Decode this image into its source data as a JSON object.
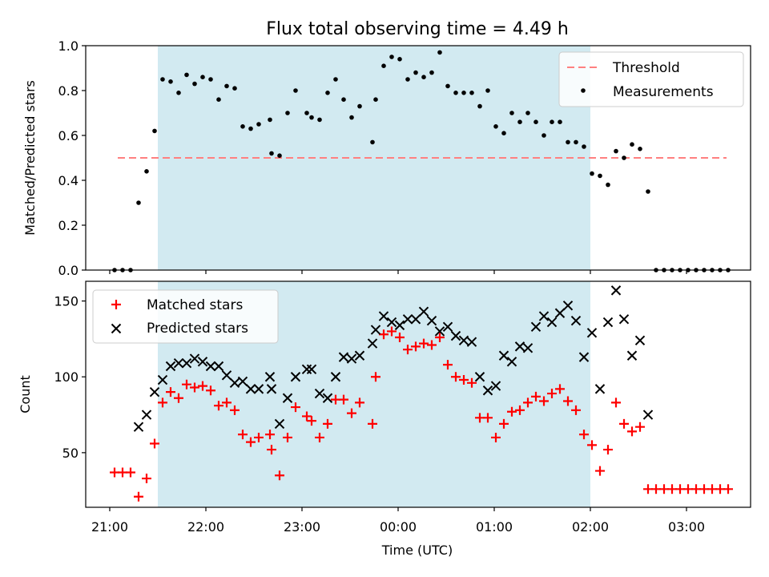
{
  "chart_data": [
    {
      "type": "scatter",
      "title": "Flux total observing time = 4.49 h",
      "xlabel": "",
      "ylabel": "Matched/Predicted stars",
      "ylim": [
        0,
        1.0
      ],
      "yticks": [
        "0.0",
        "0.2",
        "0.4",
        "0.6",
        "0.8",
        "1.0"
      ],
      "xlim": [
        "20:45",
        "03:40"
      ],
      "shaded_interval": [
        "21:30",
        "02:00"
      ],
      "shade_color": "#add8e6",
      "threshold": {
        "name": "Threshold",
        "value": 0.5,
        "x_range": [
          "21:05",
          "03:25"
        ],
        "color": "#ff8080"
      },
      "legend": [
        "Threshold",
        "Measurements"
      ],
      "series": [
        {
          "name": "Measurements",
          "marker": "dot",
          "color": "#000000",
          "points": [
            [
              "21:03",
              0.0
            ],
            [
              "21:08",
              0.0
            ],
            [
              "21:13",
              0.0
            ],
            [
              "21:18",
              0.3
            ],
            [
              "21:23",
              0.44
            ],
            [
              "21:28",
              0.62
            ],
            [
              "21:33",
              0.85
            ],
            [
              "21:38",
              0.84
            ],
            [
              "21:43",
              0.79
            ],
            [
              "21:48",
              0.87
            ],
            [
              "21:53",
              0.83
            ],
            [
              "21:58",
              0.86
            ],
            [
              "22:03",
              0.85
            ],
            [
              "22:08",
              0.76
            ],
            [
              "22:13",
              0.82
            ],
            [
              "22:18",
              0.81
            ],
            [
              "22:23",
              0.64
            ],
            [
              "22:28",
              0.63
            ],
            [
              "22:33",
              0.65
            ],
            [
              "22:40",
              0.67
            ],
            [
              "22:41",
              0.52
            ],
            [
              "22:46",
              0.51
            ],
            [
              "22:51",
              0.7
            ],
            [
              "22:56",
              0.8
            ],
            [
              "23:03",
              0.7
            ],
            [
              "23:06",
              0.68
            ],
            [
              "23:11",
              0.67
            ],
            [
              "23:16",
              0.79
            ],
            [
              "23:21",
              0.85
            ],
            [
              "23:26",
              0.76
            ],
            [
              "23:31",
              0.68
            ],
            [
              "23:36",
              0.73
            ],
            [
              "23:44",
              0.57
            ],
            [
              "23:46",
              0.76
            ],
            [
              "23:51",
              0.91
            ],
            [
              "23:56",
              0.95
            ],
            [
              "00:01",
              0.94
            ],
            [
              "00:06",
              0.85
            ],
            [
              "00:11",
              0.88
            ],
            [
              "00:16",
              0.86
            ],
            [
              "00:21",
              0.88
            ],
            [
              "00:26",
              0.97
            ],
            [
              "00:31",
              0.82
            ],
            [
              "00:36",
              0.79
            ],
            [
              "00:41",
              0.79
            ],
            [
              "00:46",
              0.79
            ],
            [
              "00:51",
              0.73
            ],
            [
              "00:56",
              0.8
            ],
            [
              "01:01",
              0.64
            ],
            [
              "01:06",
              0.61
            ],
            [
              "01:11",
              0.7
            ],
            [
              "01:16",
              0.66
            ],
            [
              "01:21",
              0.7
            ],
            [
              "01:26",
              0.66
            ],
            [
              "01:31",
              0.6
            ],
            [
              "01:36",
              0.66
            ],
            [
              "01:41",
              0.66
            ],
            [
              "01:46",
              0.57
            ],
            [
              "01:51",
              0.57
            ],
            [
              "01:56",
              0.55
            ],
            [
              "02:01",
              0.43
            ],
            [
              "02:06",
              0.42
            ],
            [
              "02:11",
              0.38
            ],
            [
              "02:16",
              0.53
            ],
            [
              "02:21",
              0.5
            ],
            [
              "02:26",
              0.56
            ],
            [
              "02:31",
              0.54
            ],
            [
              "02:36",
              0.35
            ],
            [
              "02:41",
              0.0
            ],
            [
              "02:46",
              0.0
            ],
            [
              "02:51",
              0.0
            ],
            [
              "02:56",
              0.0
            ],
            [
              "03:01",
              0.0
            ],
            [
              "03:06",
              0.0
            ],
            [
              "03:11",
              0.0
            ],
            [
              "03:16",
              0.0
            ],
            [
              "03:21",
              0.0
            ],
            [
              "03:26",
              0.0
            ]
          ]
        }
      ]
    },
    {
      "type": "scatter",
      "xlabel": "Time (UTC)",
      "ylabel": "Count",
      "ylim": [
        14,
        163
      ],
      "yticks": [
        "50",
        "100",
        "150"
      ],
      "xlim": [
        "20:45",
        "03:40"
      ],
      "xticks": [
        "21:00",
        "22:00",
        "23:00",
        "00:00",
        "01:00",
        "02:00",
        "03:00"
      ],
      "shaded_interval": [
        "21:30",
        "02:00"
      ],
      "shade_color": "#add8e6",
      "legend": [
        "Matched stars",
        "Predicted stars"
      ],
      "series": [
        {
          "name": "Matched stars",
          "marker": "plus",
          "color": "#ff0000",
          "points": [
            [
              "21:03",
              37
            ],
            [
              "21:08",
              37
            ],
            [
              "21:13",
              37
            ],
            [
              "21:18",
              21
            ],
            [
              "21:23",
              33
            ],
            [
              "21:28",
              56
            ],
            [
              "21:33",
              83
            ],
            [
              "21:38",
              90
            ],
            [
              "21:43",
              86
            ],
            [
              "21:48",
              95
            ],
            [
              "21:53",
              93
            ],
            [
              "21:58",
              94
            ],
            [
              "22:03",
              91
            ],
            [
              "22:08",
              81
            ],
            [
              "22:13",
              83
            ],
            [
              "22:18",
              78
            ],
            [
              "22:23",
              62
            ],
            [
              "22:28",
              57
            ],
            [
              "22:33",
              60
            ],
            [
              "22:40",
              62
            ],
            [
              "22:41",
              52
            ],
            [
              "22:46",
              35
            ],
            [
              "22:51",
              60
            ],
            [
              "22:56",
              80
            ],
            [
              "23:03",
              74
            ],
            [
              "23:06",
              71
            ],
            [
              "23:11",
              60
            ],
            [
              "23:16",
              69
            ],
            [
              "23:21",
              85
            ],
            [
              "23:26",
              85
            ],
            [
              "23:31",
              76
            ],
            [
              "23:36",
              83
            ],
            [
              "23:44",
              69
            ],
            [
              "23:46",
              100
            ],
            [
              "23:51",
              128
            ],
            [
              "23:56",
              130
            ],
            [
              "00:01",
              126
            ],
            [
              "00:06",
              118
            ],
            [
              "00:11",
              120
            ],
            [
              "00:16",
              122
            ],
            [
              "00:21",
              121
            ],
            [
              "00:26",
              126
            ],
            [
              "00:31",
              108
            ],
            [
              "00:36",
              100
            ],
            [
              "00:41",
              98
            ],
            [
              "00:46",
              96
            ],
            [
              "00:51",
              73
            ],
            [
              "00:56",
              73
            ],
            [
              "01:01",
              60
            ],
            [
              "01:06",
              69
            ],
            [
              "01:11",
              77
            ],
            [
              "01:16",
              78
            ],
            [
              "01:21",
              83
            ],
            [
              "01:26",
              87
            ],
            [
              "01:31",
              84
            ],
            [
              "01:36",
              89
            ],
            [
              "01:41",
              92
            ],
            [
              "01:46",
              84
            ],
            [
              "01:51",
              78
            ],
            [
              "01:56",
              62
            ],
            [
              "02:01",
              55
            ],
            [
              "02:06",
              38
            ],
            [
              "02:11",
              52
            ],
            [
              "02:16",
              83
            ],
            [
              "02:21",
              69
            ],
            [
              "02:26",
              64
            ],
            [
              "02:31",
              67
            ],
            [
              "02:36",
              26
            ],
            [
              "02:41",
              26
            ],
            [
              "02:46",
              26
            ],
            [
              "02:51",
              26
            ],
            [
              "02:56",
              26
            ],
            [
              "03:01",
              26
            ],
            [
              "03:06",
              26
            ],
            [
              "03:11",
              26
            ],
            [
              "03:16",
              26
            ],
            [
              "03:21",
              26
            ],
            [
              "03:26",
              26
            ]
          ]
        },
        {
          "name": "Predicted stars",
          "marker": "x",
          "color": "#000000",
          "points": [
            [
              "21:18",
              67
            ],
            [
              "21:23",
              75
            ],
            [
              "21:28",
              90
            ],
            [
              "21:33",
              98
            ],
            [
              "21:38",
              107
            ],
            [
              "21:43",
              109
            ],
            [
              "21:48",
              109
            ],
            [
              "21:53",
              112
            ],
            [
              "21:58",
              110
            ],
            [
              "22:03",
              107
            ],
            [
              "22:08",
              107
            ],
            [
              "22:13",
              101
            ],
            [
              "22:18",
              96
            ],
            [
              "22:23",
              97
            ],
            [
              "22:28",
              92
            ],
            [
              "22:33",
              92
            ],
            [
              "22:40",
              100
            ],
            [
              "22:41",
              92
            ],
            [
              "22:46",
              69
            ],
            [
              "22:51",
              86
            ],
            [
              "22:56",
              100
            ],
            [
              "23:03",
              105
            ],
            [
              "23:06",
              105
            ],
            [
              "23:11",
              89
            ],
            [
              "23:16",
              86
            ],
            [
              "23:21",
              100
            ],
            [
              "23:26",
              113
            ],
            [
              "23:31",
              112
            ],
            [
              "23:36",
              114
            ],
            [
              "23:44",
              122
            ],
            [
              "23:46",
              131
            ],
            [
              "23:51",
              140
            ],
            [
              "23:56",
              136
            ],
            [
              "00:01",
              134
            ],
            [
              "00:06",
              138
            ],
            [
              "00:11",
              138
            ],
            [
              "00:16",
              143
            ],
            [
              "00:21",
              137
            ],
            [
              "00:26",
              130
            ],
            [
              "00:31",
              133
            ],
            [
              "00:36",
              127
            ],
            [
              "00:41",
              124
            ],
            [
              "00:46",
              123
            ],
            [
              "00:51",
              100
            ],
            [
              "00:56",
              91
            ],
            [
              "01:01",
              94
            ],
            [
              "01:06",
              114
            ],
            [
              "01:11",
              110
            ],
            [
              "01:16",
              120
            ],
            [
              "01:21",
              119
            ],
            [
              "01:26",
              133
            ],
            [
              "01:31",
              140
            ],
            [
              "01:36",
              136
            ],
            [
              "01:41",
              142
            ],
            [
              "01:46",
              147
            ],
            [
              "01:51",
              137
            ],
            [
              "01:56",
              113
            ],
            [
              "02:01",
              129
            ],
            [
              "02:06",
              92
            ],
            [
              "02:11",
              136
            ],
            [
              "02:16",
              157
            ],
            [
              "02:21",
              138
            ],
            [
              "02:26",
              114
            ],
            [
              "02:31",
              124
            ],
            [
              "02:36",
              75
            ]
          ]
        }
      ]
    }
  ]
}
